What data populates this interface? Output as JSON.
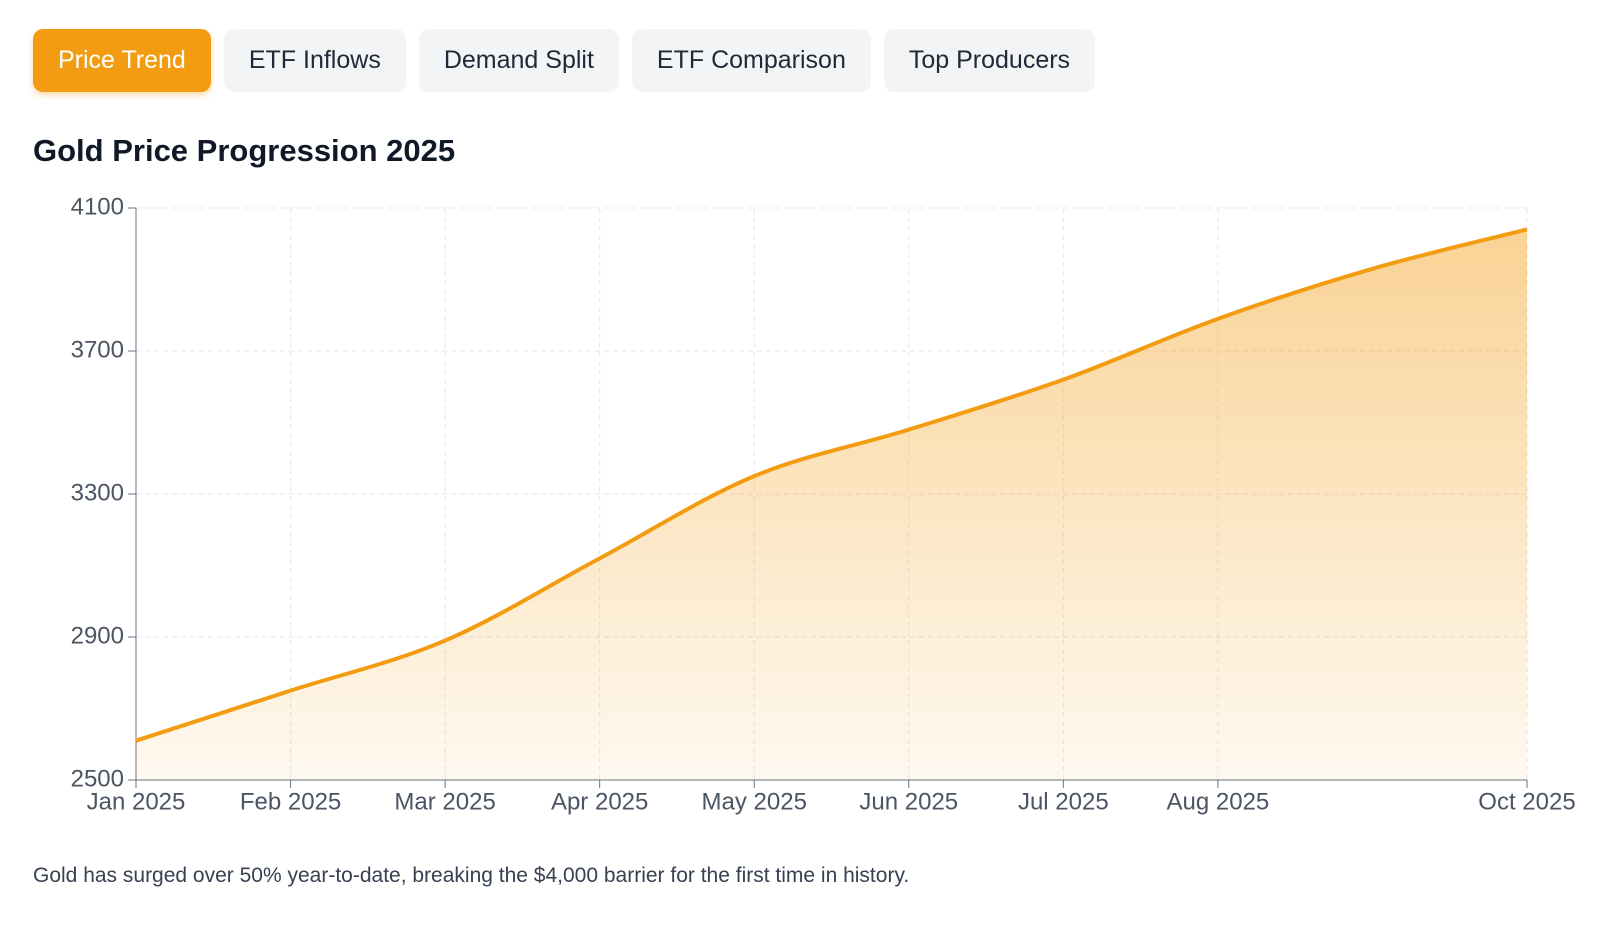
{
  "tabs": {
    "items": [
      "Price Trend",
      "ETF Inflows",
      "Demand Split",
      "ETF Comparison",
      "Top Producers"
    ],
    "active": 0
  },
  "chart_data": {
    "type": "line",
    "title": "Gold Price Progression 2025",
    "categories": [
      "Jan 2025",
      "Feb 2025",
      "Mar 2025",
      "Apr 2025",
      "May 2025",
      "Jun 2025",
      "Jul 2025",
      "Aug 2025",
      null,
      "Oct 2025"
    ],
    "series": [
      {
        "color": "#f39c12",
        "values": [
          2610,
          2750,
          2890,
          3120,
          3350,
          3480,
          3620,
          3790,
          3930,
          4040
        ]
      }
    ],
    "ylim": [
      2500,
      4100
    ],
    "yticks": [
      2500,
      2900,
      3300,
      3700,
      4100
    ],
    "grid": true,
    "fill": true
  },
  "caption": "Gold has surged over 50% year-to-date, breaking the $4,000 barrier for the first time in history."
}
